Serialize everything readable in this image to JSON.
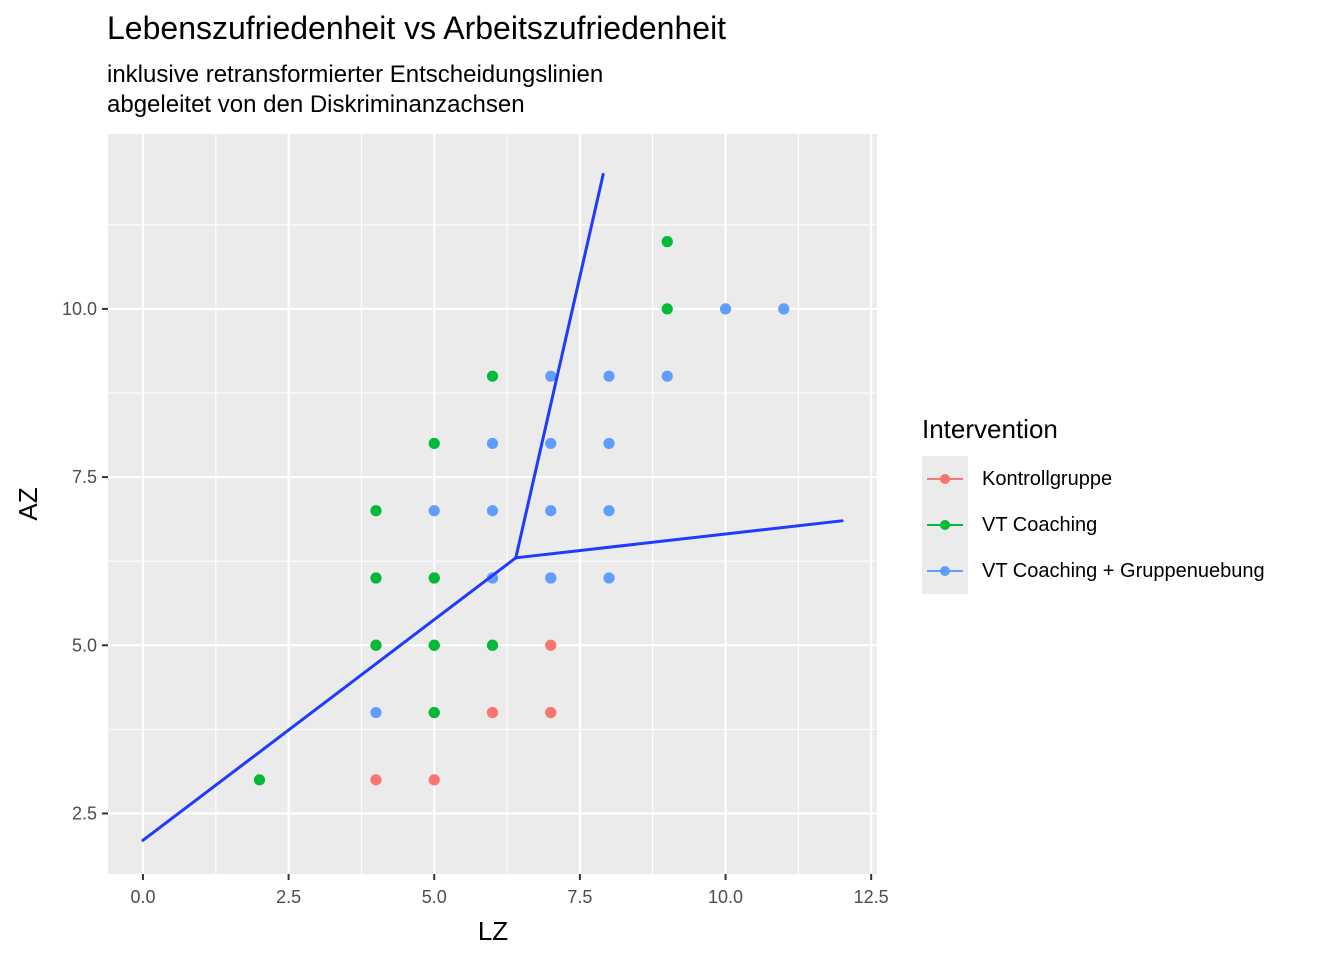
{
  "chart_data": {
    "type": "scatter",
    "title": "Lebenszufriedenheit vs Arbeitszufriedenheit",
    "subtitle_lines": [
      "inklusive retransformierter Entscheidungslinien",
      "abgeleitet von den Diskriminanzachsen"
    ],
    "xlabel": "LZ",
    "ylabel": "AZ",
    "xlim": [
      -0.6,
      12.6
    ],
    "ylim": [
      1.6,
      12.6
    ],
    "x_ticks": [
      "0.0",
      "2.5",
      "5.0",
      "7.5",
      "10.0",
      "12.5"
    ],
    "x_tick_values": [
      0,
      2.5,
      5,
      7.5,
      10,
      12.5
    ],
    "y_ticks": [
      "2.5",
      "5.0",
      "7.5",
      "10.0"
    ],
    "y_tick_values": [
      2.5,
      5,
      7.5,
      10
    ],
    "grid": true,
    "legend_title": "Intervention",
    "legend_position": "right",
    "series": [
      {
        "name": "Kontrollgruppe",
        "color": "#F8766D",
        "points": [
          [
            4,
            3
          ],
          [
            5,
            3
          ],
          [
            5,
            4
          ],
          [
            6,
            4
          ],
          [
            7,
            4
          ],
          [
            6,
            5
          ],
          [
            7,
            5
          ],
          [
            5,
            5
          ],
          [
            5,
            6
          ],
          [
            6,
            6
          ],
          [
            7,
            6
          ],
          [
            4,
            5
          ],
          [
            5,
            4
          ],
          [
            6,
            4
          ],
          [
            7,
            4
          ]
        ]
      },
      {
        "name": "VT Coaching",
        "color": "#00BA38",
        "points": [
          [
            2,
            3
          ],
          [
            4,
            5
          ],
          [
            4,
            6
          ],
          [
            4,
            7
          ],
          [
            5,
            4
          ],
          [
            5,
            5
          ],
          [
            5,
            6
          ],
          [
            5,
            8
          ],
          [
            6,
            5
          ],
          [
            6,
            9
          ],
          [
            9,
            10
          ],
          [
            9,
            11
          ]
        ]
      },
      {
        "name": "VT Coaching + Gruppenuebung",
        "color": "#619CFF",
        "points": [
          [
            4,
            4
          ],
          [
            5,
            7
          ],
          [
            6,
            6
          ],
          [
            6,
            7
          ],
          [
            6,
            8
          ],
          [
            7,
            6
          ],
          [
            7,
            7
          ],
          [
            7,
            8
          ],
          [
            7,
            9
          ],
          [
            8,
            6
          ],
          [
            8,
            7
          ],
          [
            8,
            8
          ],
          [
            8,
            9
          ],
          [
            9,
            9
          ],
          [
            10,
            10
          ],
          [
            11,
            10
          ]
        ]
      }
    ],
    "decision_lines": {
      "color": "#1F3BFF",
      "segments": [
        [
          [
            0,
            2.1
          ],
          [
            6.4,
            6.3
          ]
        ],
        [
          [
            6.4,
            6.3
          ],
          [
            7.9,
            12.0
          ]
        ],
        [
          [
            6.4,
            6.3
          ],
          [
            12.0,
            6.85
          ]
        ]
      ]
    }
  }
}
